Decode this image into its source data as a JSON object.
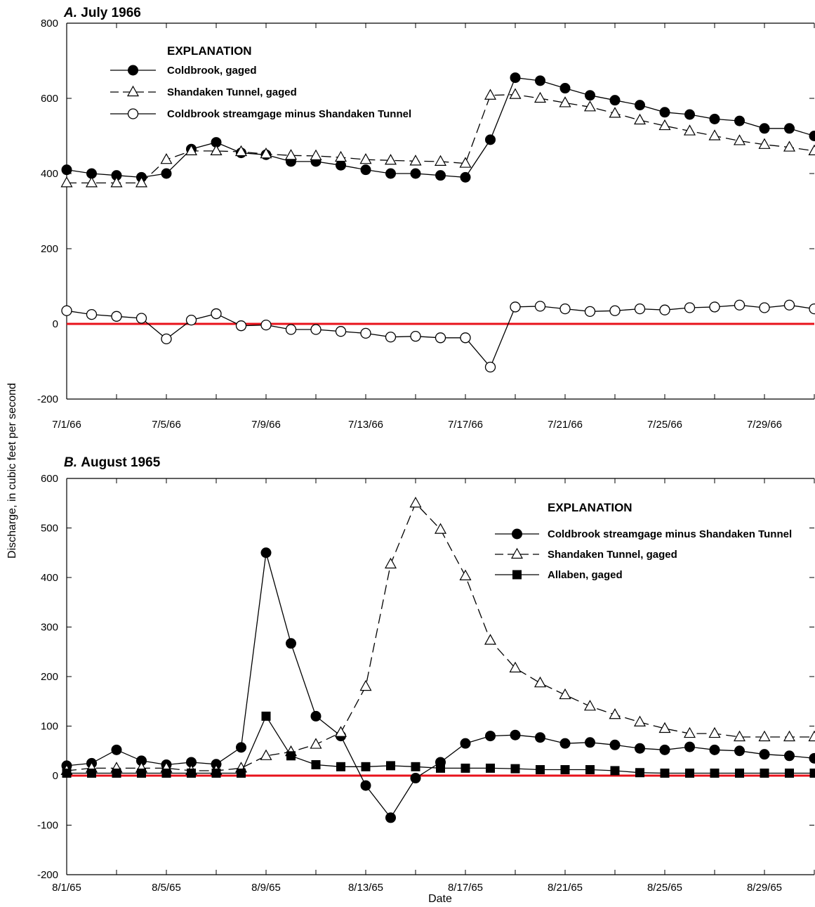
{
  "figure": {
    "ylabel": "Discharge, in cubic feet per second",
    "xlabel": "Date",
    "zero_line_color": "#e8121b",
    "line_color": "#000000"
  },
  "chart_data": [
    {
      "type": "line",
      "letter": "A.",
      "title": "July 1966",
      "ylim": [
        -200,
        800
      ],
      "yticks": [
        -200,
        0,
        200,
        400,
        600,
        800
      ],
      "xlim": [
        "7/1/66",
        "7/31/66"
      ],
      "x": [
        "7/1/66",
        "7/2/66",
        "7/3/66",
        "7/4/66",
        "7/5/66",
        "7/6/66",
        "7/7/66",
        "7/8/66",
        "7/9/66",
        "7/10/66",
        "7/11/66",
        "7/12/66",
        "7/13/66",
        "7/14/66",
        "7/15/66",
        "7/16/66",
        "7/17/66",
        "7/18/66",
        "7/19/66",
        "7/20/66",
        "7/21/66",
        "7/22/66",
        "7/23/66",
        "7/24/66",
        "7/25/66",
        "7/26/66",
        "7/27/66",
        "7/28/66",
        "7/29/66",
        "7/30/66",
        "7/31/66"
      ],
      "xtick_labels": [
        "7/1/66",
        "7/5/66",
        "7/9/66",
        "7/13/66",
        "7/17/66",
        "7/21/66",
        "7/25/66",
        "7/29/66"
      ],
      "legend": {
        "heading": "EXPLANATION",
        "placement": "top-left"
      },
      "series": [
        {
          "name": "Coldbrook, gaged",
          "marker": "filled-circle",
          "dash": "solid",
          "values": [
            410,
            400,
            395,
            390,
            400,
            465,
            483,
            455,
            450,
            432,
            432,
            422,
            410,
            400,
            400,
            395,
            390,
            490,
            655,
            647,
            627,
            608,
            595,
            582,
            563,
            557,
            545,
            540,
            520,
            520,
            500
          ]
        },
        {
          "name": "Shandaken Tunnel, gaged",
          "marker": "open-triangle",
          "dash": "dashed",
          "values": [
            375,
            375,
            375,
            375,
            437,
            460,
            460,
            458,
            452,
            448,
            447,
            443,
            437,
            435,
            433,
            432,
            427,
            608,
            610,
            600,
            588,
            577,
            560,
            542,
            527,
            513,
            500,
            487,
            477,
            470,
            460
          ]
        },
        {
          "name": "Coldbrook streamgage minus Shandaken Tunnel",
          "marker": "open-circle",
          "dash": "solid",
          "values": [
            35,
            25,
            20,
            15,
            -40,
            10,
            27,
            -5,
            -3,
            -15,
            -15,
            -20,
            -25,
            -35,
            -33,
            -37,
            -37,
            -115,
            45,
            47,
            40,
            33,
            35,
            40,
            37,
            43,
            45,
            50,
            43,
            50,
            40
          ]
        }
      ]
    },
    {
      "type": "line",
      "letter": "B.",
      "title": "August 1965",
      "ylim": [
        -200,
        600
      ],
      "yticks": [
        -200,
        -100,
        0,
        100,
        200,
        300,
        400,
        500,
        600
      ],
      "xlim": [
        "8/1/65",
        "8/31/65"
      ],
      "x": [
        "8/1/65",
        "8/2/65",
        "8/3/65",
        "8/4/65",
        "8/5/65",
        "8/6/65",
        "8/7/65",
        "8/8/65",
        "8/9/65",
        "8/10/65",
        "8/11/65",
        "8/12/65",
        "8/13/65",
        "8/14/65",
        "8/15/65",
        "8/16/65",
        "8/17/65",
        "8/18/65",
        "8/19/65",
        "8/20/65",
        "8/21/65",
        "8/22/65",
        "8/23/65",
        "8/24/65",
        "8/25/65",
        "8/26/65",
        "8/27/65",
        "8/28/65",
        "8/29/65",
        "8/30/65",
        "8/31/65"
      ],
      "xtick_labels": [
        "8/1/65",
        "8/5/65",
        "8/9/65",
        "8/13/65",
        "8/17/65",
        "8/21/65",
        "8/25/65",
        "8/29/65"
      ],
      "legend": {
        "heading": "EXPLANATION",
        "placement": "top-right"
      },
      "series": [
        {
          "name": "Coldbrook streamgage minus Shandaken Tunnel",
          "marker": "filled-circle",
          "dash": "solid",
          "values": [
            20,
            25,
            52,
            30,
            22,
            27,
            23,
            57,
            450,
            267,
            120,
            80,
            -20,
            -85,
            -5,
            27,
            65,
            80,
            82,
            77,
            65,
            67,
            62,
            55,
            52,
            58,
            52,
            50,
            43,
            40,
            35
          ]
        },
        {
          "name": "Shandaken Tunnel, gaged",
          "marker": "open-triangle",
          "dash": "dashed",
          "values": [
            10,
            15,
            15,
            15,
            15,
            10,
            10,
            15,
            40,
            48,
            63,
            87,
            180,
            427,
            550,
            497,
            403,
            273,
            217,
            187,
            163,
            140,
            123,
            108,
            95,
            85,
            85,
            78,
            78,
            78,
            78
          ]
        },
        {
          "name": "Allaben, gaged",
          "marker": "filled-square",
          "dash": "solid",
          "values": [
            5,
            5,
            5,
            5,
            5,
            5,
            5,
            5,
            120,
            40,
            22,
            18,
            18,
            20,
            18,
            15,
            15,
            15,
            14,
            12,
            12,
            12,
            10,
            6,
            5,
            5,
            5,
            5,
            5,
            5,
            5
          ]
        }
      ]
    }
  ]
}
